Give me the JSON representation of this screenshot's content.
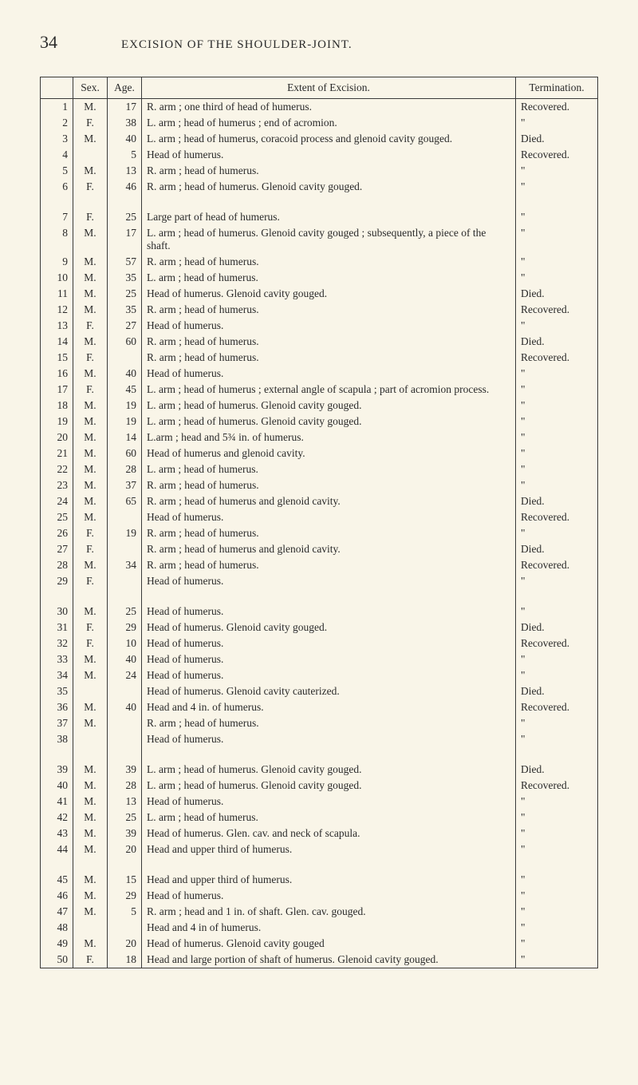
{
  "page_number": "34",
  "page_title": "EXCISION OF THE SHOULDER-JOINT.",
  "columns": {
    "c0": "",
    "c1": "Sex.",
    "c2": "Age.",
    "c3": "Extent of Excision.",
    "c4": "Termination."
  },
  "ditto": "  \"",
  "rows": [
    {
      "n": "1",
      "s": "M.",
      "a": "17",
      "e": "R. arm ; one third of head of humerus.",
      "t": "Recovered."
    },
    {
      "n": "2",
      "s": "F.",
      "a": "38",
      "e": "L. arm ; head of humerus ; end of acromion.",
      "t": "  \""
    },
    {
      "n": "3",
      "s": "M.",
      "a": "40",
      "e": "L. arm ; head of humerus, coracoid process and glenoid cavity gouged.",
      "t": "Died."
    },
    {
      "n": "4",
      "s": "",
      "a": "5",
      "e": "Head of humerus.",
      "t": "Recovered."
    },
    {
      "n": "5",
      "s": "M.",
      "a": "13",
      "e": "R. arm ; head of humerus.",
      "t": "  \""
    },
    {
      "n": "6",
      "s": "F.",
      "a": "46",
      "e": "R. arm ; head of humerus. Glenoid cavity gouged.",
      "t": "  \""
    },
    {
      "spacer": true
    },
    {
      "n": "7",
      "s": "F.",
      "a": "25",
      "e": "Large part of head of humerus.",
      "t": "  \""
    },
    {
      "n": "8",
      "s": "M.",
      "a": "17",
      "e": "L. arm ; head of humerus. Glenoid cavity gouged ; subsequently, a piece of the shaft.",
      "t": "  \""
    },
    {
      "n": "9",
      "s": "M.",
      "a": "57",
      "e": "R. arm ; head of humerus.",
      "t": "  \""
    },
    {
      "n": "10",
      "s": "M.",
      "a": "35",
      "e": "L. arm ; head of humerus.",
      "t": "  \""
    },
    {
      "n": "11",
      "s": "M.",
      "a": "25",
      "e": "Head of humerus. Glenoid cavity gouged.",
      "t": "Died."
    },
    {
      "n": "12",
      "s": "M.",
      "a": "35",
      "e": "R. arm ; head of humerus.",
      "t": "Recovered."
    },
    {
      "n": "13",
      "s": "F.",
      "a": "27",
      "e": "Head of humerus.",
      "t": "  \""
    },
    {
      "n": "14",
      "s": "M.",
      "a": "60",
      "e": "R. arm ; head of humerus.",
      "t": "Died."
    },
    {
      "n": "15",
      "s": "F.",
      "a": "",
      "e": "R. arm ; head of humerus.",
      "t": "Recovered."
    },
    {
      "n": "16",
      "s": "M.",
      "a": "40",
      "e": "Head of humerus.",
      "t": "  \""
    },
    {
      "n": "17",
      "s": "F.",
      "a": "45",
      "e": "L. arm ; head of humerus ; external angle of scapula ; part of acromion process.",
      "t": "  \""
    },
    {
      "n": "18",
      "s": "M.",
      "a": "19",
      "e": "L. arm ; head of humerus. Glenoid cavity gouged.",
      "t": "  \""
    },
    {
      "n": "19",
      "s": "M.",
      "a": "19",
      "e": "L. arm ; head of humerus. Glenoid cavity gouged.",
      "t": "  \""
    },
    {
      "n": "20",
      "s": "M.",
      "a": "14",
      "e": "L.arm ; head and 5¾ in. of humerus.",
      "t": "  \""
    },
    {
      "n": "21",
      "s": "M.",
      "a": "60",
      "e": "Head of humerus and glenoid cavity.",
      "t": "  \""
    },
    {
      "n": "22",
      "s": "M.",
      "a": "28",
      "e": "L. arm ; head of humerus.",
      "t": "  \""
    },
    {
      "n": "23",
      "s": "M.",
      "a": "37",
      "e": "R. arm ; head of humerus.",
      "t": "  \""
    },
    {
      "n": "24",
      "s": "M.",
      "a": "65",
      "e": "R. arm ; head of humerus and glenoid cavity.",
      "t": "Died."
    },
    {
      "n": "25",
      "s": "M.",
      "a": "",
      "e": "Head of humerus.",
      "t": "Recovered."
    },
    {
      "n": "26",
      "s": "F.",
      "a": "19",
      "e": "R. arm ; head of humerus.",
      "t": "  \""
    },
    {
      "n": "27",
      "s": "F.",
      "a": "",
      "e": "R. arm ; head of humerus and glenoid cavity.",
      "t": "Died."
    },
    {
      "n": "28",
      "s": "M.",
      "a": "34",
      "e": "R. arm ; head of humerus.",
      "t": "Recovered."
    },
    {
      "n": "29",
      "s": "F.",
      "a": "",
      "e": "Head of humerus.",
      "t": "  \""
    },
    {
      "spacer": true
    },
    {
      "n": "30",
      "s": "M.",
      "a": "25",
      "e": "Head of humerus.",
      "t": "  \""
    },
    {
      "n": "31",
      "s": "F.",
      "a": "29",
      "e": "Head of humerus. Glenoid cavity gouged.",
      "t": "Died."
    },
    {
      "n": "32",
      "s": "F.",
      "a": "10",
      "e": "Head of humerus.",
      "t": "Recovered."
    },
    {
      "n": "33",
      "s": "M.",
      "a": "40",
      "e": "Head of humerus.",
      "t": "  \""
    },
    {
      "n": "34",
      "s": "M.",
      "a": "24",
      "e": "Head of humerus.",
      "t": "  \""
    },
    {
      "n": "35",
      "s": "",
      "a": "",
      "e": "Head of humerus. Glenoid cavity cauterized.",
      "t": "Died."
    },
    {
      "n": "36",
      "s": "M.",
      "a": "40",
      "e": "Head and 4 in. of humerus.",
      "t": "Recovered."
    },
    {
      "n": "37",
      "s": "M.",
      "a": "",
      "e": "R. arm ; head of humerus.",
      "t": "  \""
    },
    {
      "n": "38",
      "s": "",
      "a": "",
      "e": "Head of humerus.",
      "t": "  \""
    },
    {
      "spacer": true
    },
    {
      "n": "39",
      "s": "M.",
      "a": "39",
      "e": "L. arm ; head of humerus. Glenoid cavity gouged.",
      "t": "Died."
    },
    {
      "n": "40",
      "s": "M.",
      "a": "28",
      "e": "L. arm ; head of humerus. Glenoid cavity gouged.",
      "t": "Recovered."
    },
    {
      "n": "41",
      "s": "M.",
      "a": "13",
      "e": "Head of humerus.",
      "t": "  \""
    },
    {
      "n": "42",
      "s": "M.",
      "a": "25",
      "e": "L. arm ; head of humerus.",
      "t": "  \""
    },
    {
      "n": "43",
      "s": "M.",
      "a": "39",
      "e": "Head of humerus. Glen. cav. and neck of scapula.",
      "t": "  \""
    },
    {
      "n": "44",
      "s": "M.",
      "a": "20",
      "e": "Head and upper third of humerus.",
      "t": "  \""
    },
    {
      "spacer": true
    },
    {
      "n": "45",
      "s": "M.",
      "a": "15",
      "e": "Head and upper third of humerus.",
      "t": "  \""
    },
    {
      "n": "46",
      "s": "M.",
      "a": "29",
      "e": "Head of humerus.",
      "t": "  \""
    },
    {
      "n": "47",
      "s": "M.",
      "a": "5",
      "e": "R. arm ; head and 1 in. of shaft. Glen. cav. gouged.",
      "t": "  \""
    },
    {
      "n": "48",
      "s": "",
      "a": "",
      "e": "Head and 4 in of humerus.",
      "t": "  \""
    },
    {
      "n": "49",
      "s": "M.",
      "a": "20",
      "e": "Head of humerus. Glenoid cavity gouged",
      "t": "  \""
    },
    {
      "n": "50",
      "s": "F.",
      "a": "18",
      "e": "Head and large portion of shaft of humerus. Glenoid cavity gouged.",
      "t": "  \""
    }
  ]
}
